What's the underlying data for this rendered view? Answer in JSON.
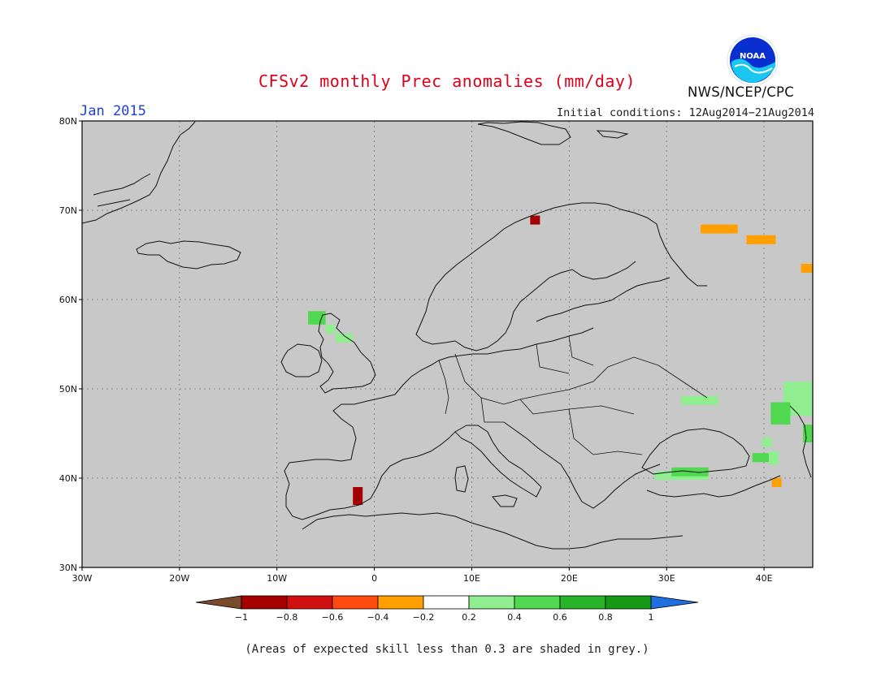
{
  "header": {
    "title": "CFSv2 monthly Prec anomalies (mm/day)",
    "month": "Jan 2015",
    "initial_conditions": "Initial conditions: 12Aug2014−21Aug2014",
    "agency": "NWS/NCEP/CPC",
    "logo_text": "NOAA"
  },
  "map": {
    "lon_range": [
      -30,
      45
    ],
    "lat_range": [
      30,
      80
    ],
    "lon_ticks": [
      {
        "value": -30,
        "label": "30W"
      },
      {
        "value": -20,
        "label": "20W"
      },
      {
        "value": -10,
        "label": "10W"
      },
      {
        "value": 0,
        "label": "0"
      },
      {
        "value": 10,
        "label": "10E"
      },
      {
        "value": 20,
        "label": "20E"
      },
      {
        "value": 30,
        "label": "30E"
      },
      {
        "value": 40,
        "label": "40E"
      }
    ],
    "lat_ticks": [
      {
        "value": 30,
        "label": "30N"
      },
      {
        "value": 40,
        "label": "40N"
      },
      {
        "value": 50,
        "label": "50N"
      },
      {
        "value": 60,
        "label": "60N"
      },
      {
        "value": 70,
        "label": "70N"
      },
      {
        "value": 80,
        "label": "80N"
      }
    ],
    "background_color": "#c8c8c8",
    "anomaly_cells": [
      {
        "lon": 16.0,
        "lat": 68.4,
        "w": 1.0,
        "h": 1.0,
        "value": -0.9
      },
      {
        "lon": -2.2,
        "lat": 37.0,
        "w": 1.0,
        "h": 2.0,
        "value": -0.9
      },
      {
        "lon": 33.5,
        "lat": 67.4,
        "w": 3.8,
        "h": 1.0,
        "value": -0.3
      },
      {
        "lon": 38.2,
        "lat": 66.2,
        "w": 3.0,
        "h": 1.0,
        "value": -0.3
      },
      {
        "lon": 43.8,
        "lat": 63.0,
        "w": 1.2,
        "h": 1.0,
        "value": -0.3
      },
      {
        "lon": 40.8,
        "lat": 39.0,
        "w": 1.0,
        "h": 1.0,
        "value": -0.3
      },
      {
        "lon": -6.8,
        "lat": 57.2,
        "w": 1.8,
        "h": 1.5,
        "value": 0.5
      },
      {
        "lon": -5.0,
        "lat": 56.2,
        "w": 1.0,
        "h": 1.0,
        "value": 0.3
      },
      {
        "lon": -4.0,
        "lat": 55.2,
        "w": 1.8,
        "h": 1.0,
        "value": 0.3
      },
      {
        "lon": 31.5,
        "lat": 48.2,
        "w": 3.8,
        "h": 1.0,
        "value": 0.3
      },
      {
        "lon": 28.8,
        "lat": 39.8,
        "w": 5.5,
        "h": 1.0,
        "value": 0.3
      },
      {
        "lon": 30.5,
        "lat": 40.2,
        "w": 3.8,
        "h": 1.0,
        "value": 0.5
      },
      {
        "lon": 42.0,
        "lat": 47.0,
        "w": 3.0,
        "h": 3.8,
        "value": 0.3
      },
      {
        "lon": 40.7,
        "lat": 46.0,
        "w": 2.0,
        "h": 2.5,
        "value": 0.5
      },
      {
        "lon": 44.0,
        "lat": 44.0,
        "w": 1.0,
        "h": 2.0,
        "value": 0.5
      },
      {
        "lon": 38.8,
        "lat": 41.8,
        "w": 2.0,
        "h": 1.0,
        "value": 0.5
      },
      {
        "lon": 40.5,
        "lat": 41.5,
        "w": 1.0,
        "h": 1.5,
        "value": 0.3
      },
      {
        "lon": 39.8,
        "lat": 43.5,
        "w": 1.0,
        "h": 1.0,
        "value": 0.3
      }
    ]
  },
  "colorbar": {
    "boundaries": [
      "−1",
      "−0.8",
      "−0.6",
      "−0.4",
      "−0.2",
      "0.2",
      "0.4",
      "0.6",
      "0.8",
      "1"
    ],
    "colors": [
      "#7a4a2c",
      "#a50000",
      "#d01010",
      "#ff4a10",
      "#ffa000",
      "#ffffff",
      "#90ee90",
      "#50d850",
      "#28b428",
      "#169a16",
      "#1f6fe0"
    ]
  },
  "footnote": "(Areas of expected skill less than 0.3 are shaded in grey.)"
}
